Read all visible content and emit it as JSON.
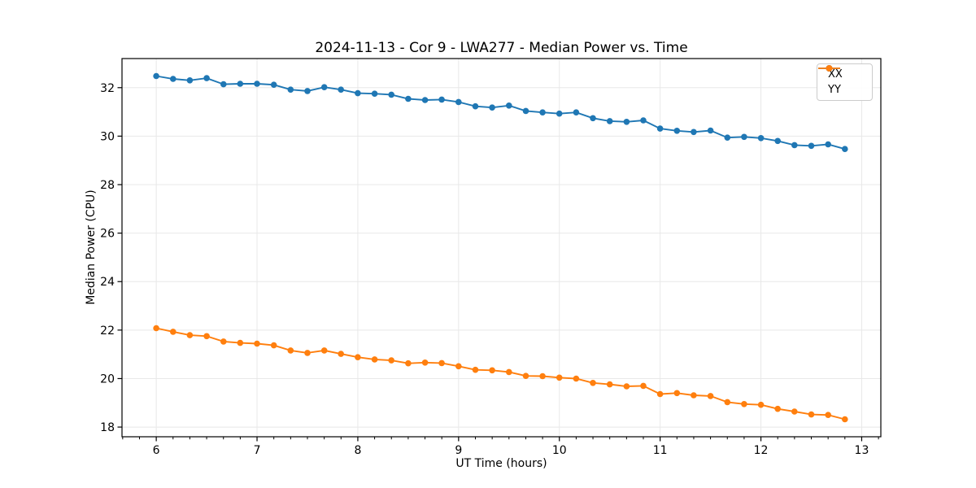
{
  "chart_data": {
    "type": "line",
    "title": "2024-11-13 - Cor 9 - LWA277 - Median Power vs. Time",
    "xlabel": "UT Time (hours)",
    "ylabel": "Median Power (CPU)",
    "xlim": [
      5.66,
      13.19
    ],
    "ylim": [
      17.6,
      33.2
    ],
    "xticks": [
      6,
      7,
      8,
      9,
      10,
      11,
      12,
      13
    ],
    "yticks": [
      18,
      20,
      22,
      24,
      26,
      28,
      30,
      32
    ],
    "x_minor_step": 0.1666667,
    "grid": true,
    "grid_color": "#e8e8e8",
    "legend_position": "upper right",
    "x": [
      6.0,
      6.167,
      6.333,
      6.5,
      6.667,
      6.833,
      7.0,
      7.167,
      7.333,
      7.5,
      7.667,
      7.833,
      8.0,
      8.167,
      8.333,
      8.5,
      8.667,
      8.833,
      9.0,
      9.167,
      9.333,
      9.5,
      9.667,
      9.833,
      10.0,
      10.167,
      10.333,
      10.5,
      10.667,
      10.833,
      11.0,
      11.167,
      11.333,
      11.5,
      11.667,
      11.833,
      12.0,
      12.167,
      12.333,
      12.5,
      12.667,
      12.833
    ],
    "series": [
      {
        "name": "XX",
        "color": "#1f77b4",
        "values": [
          32.48,
          32.36,
          32.3,
          32.39,
          32.14,
          32.16,
          32.16,
          32.12,
          31.92,
          31.86,
          32.02,
          31.92,
          31.77,
          31.75,
          31.71,
          31.54,
          31.49,
          31.51,
          31.41,
          31.23,
          31.18,
          31.26,
          31.04,
          30.98,
          30.93,
          30.98,
          30.74,
          30.62,
          30.59,
          30.65,
          30.31,
          30.22,
          30.17,
          30.23,
          29.94,
          29.97,
          29.92,
          29.8,
          29.63,
          29.6,
          29.66,
          29.47
        ]
      },
      {
        "name": "YY",
        "color": "#ff7f0e",
        "values": [
          22.08,
          21.93,
          21.79,
          21.75,
          21.53,
          21.47,
          21.44,
          21.37,
          21.16,
          21.06,
          21.16,
          21.02,
          20.88,
          20.79,
          20.75,
          20.63,
          20.66,
          20.64,
          20.51,
          20.36,
          20.34,
          20.27,
          20.11,
          20.1,
          20.04,
          20.0,
          19.82,
          19.76,
          19.68,
          19.7,
          19.36,
          19.4,
          19.31,
          19.28,
          19.03,
          18.95,
          18.92,
          18.75,
          18.64,
          18.52,
          18.5,
          18.32
        ]
      }
    ]
  }
}
